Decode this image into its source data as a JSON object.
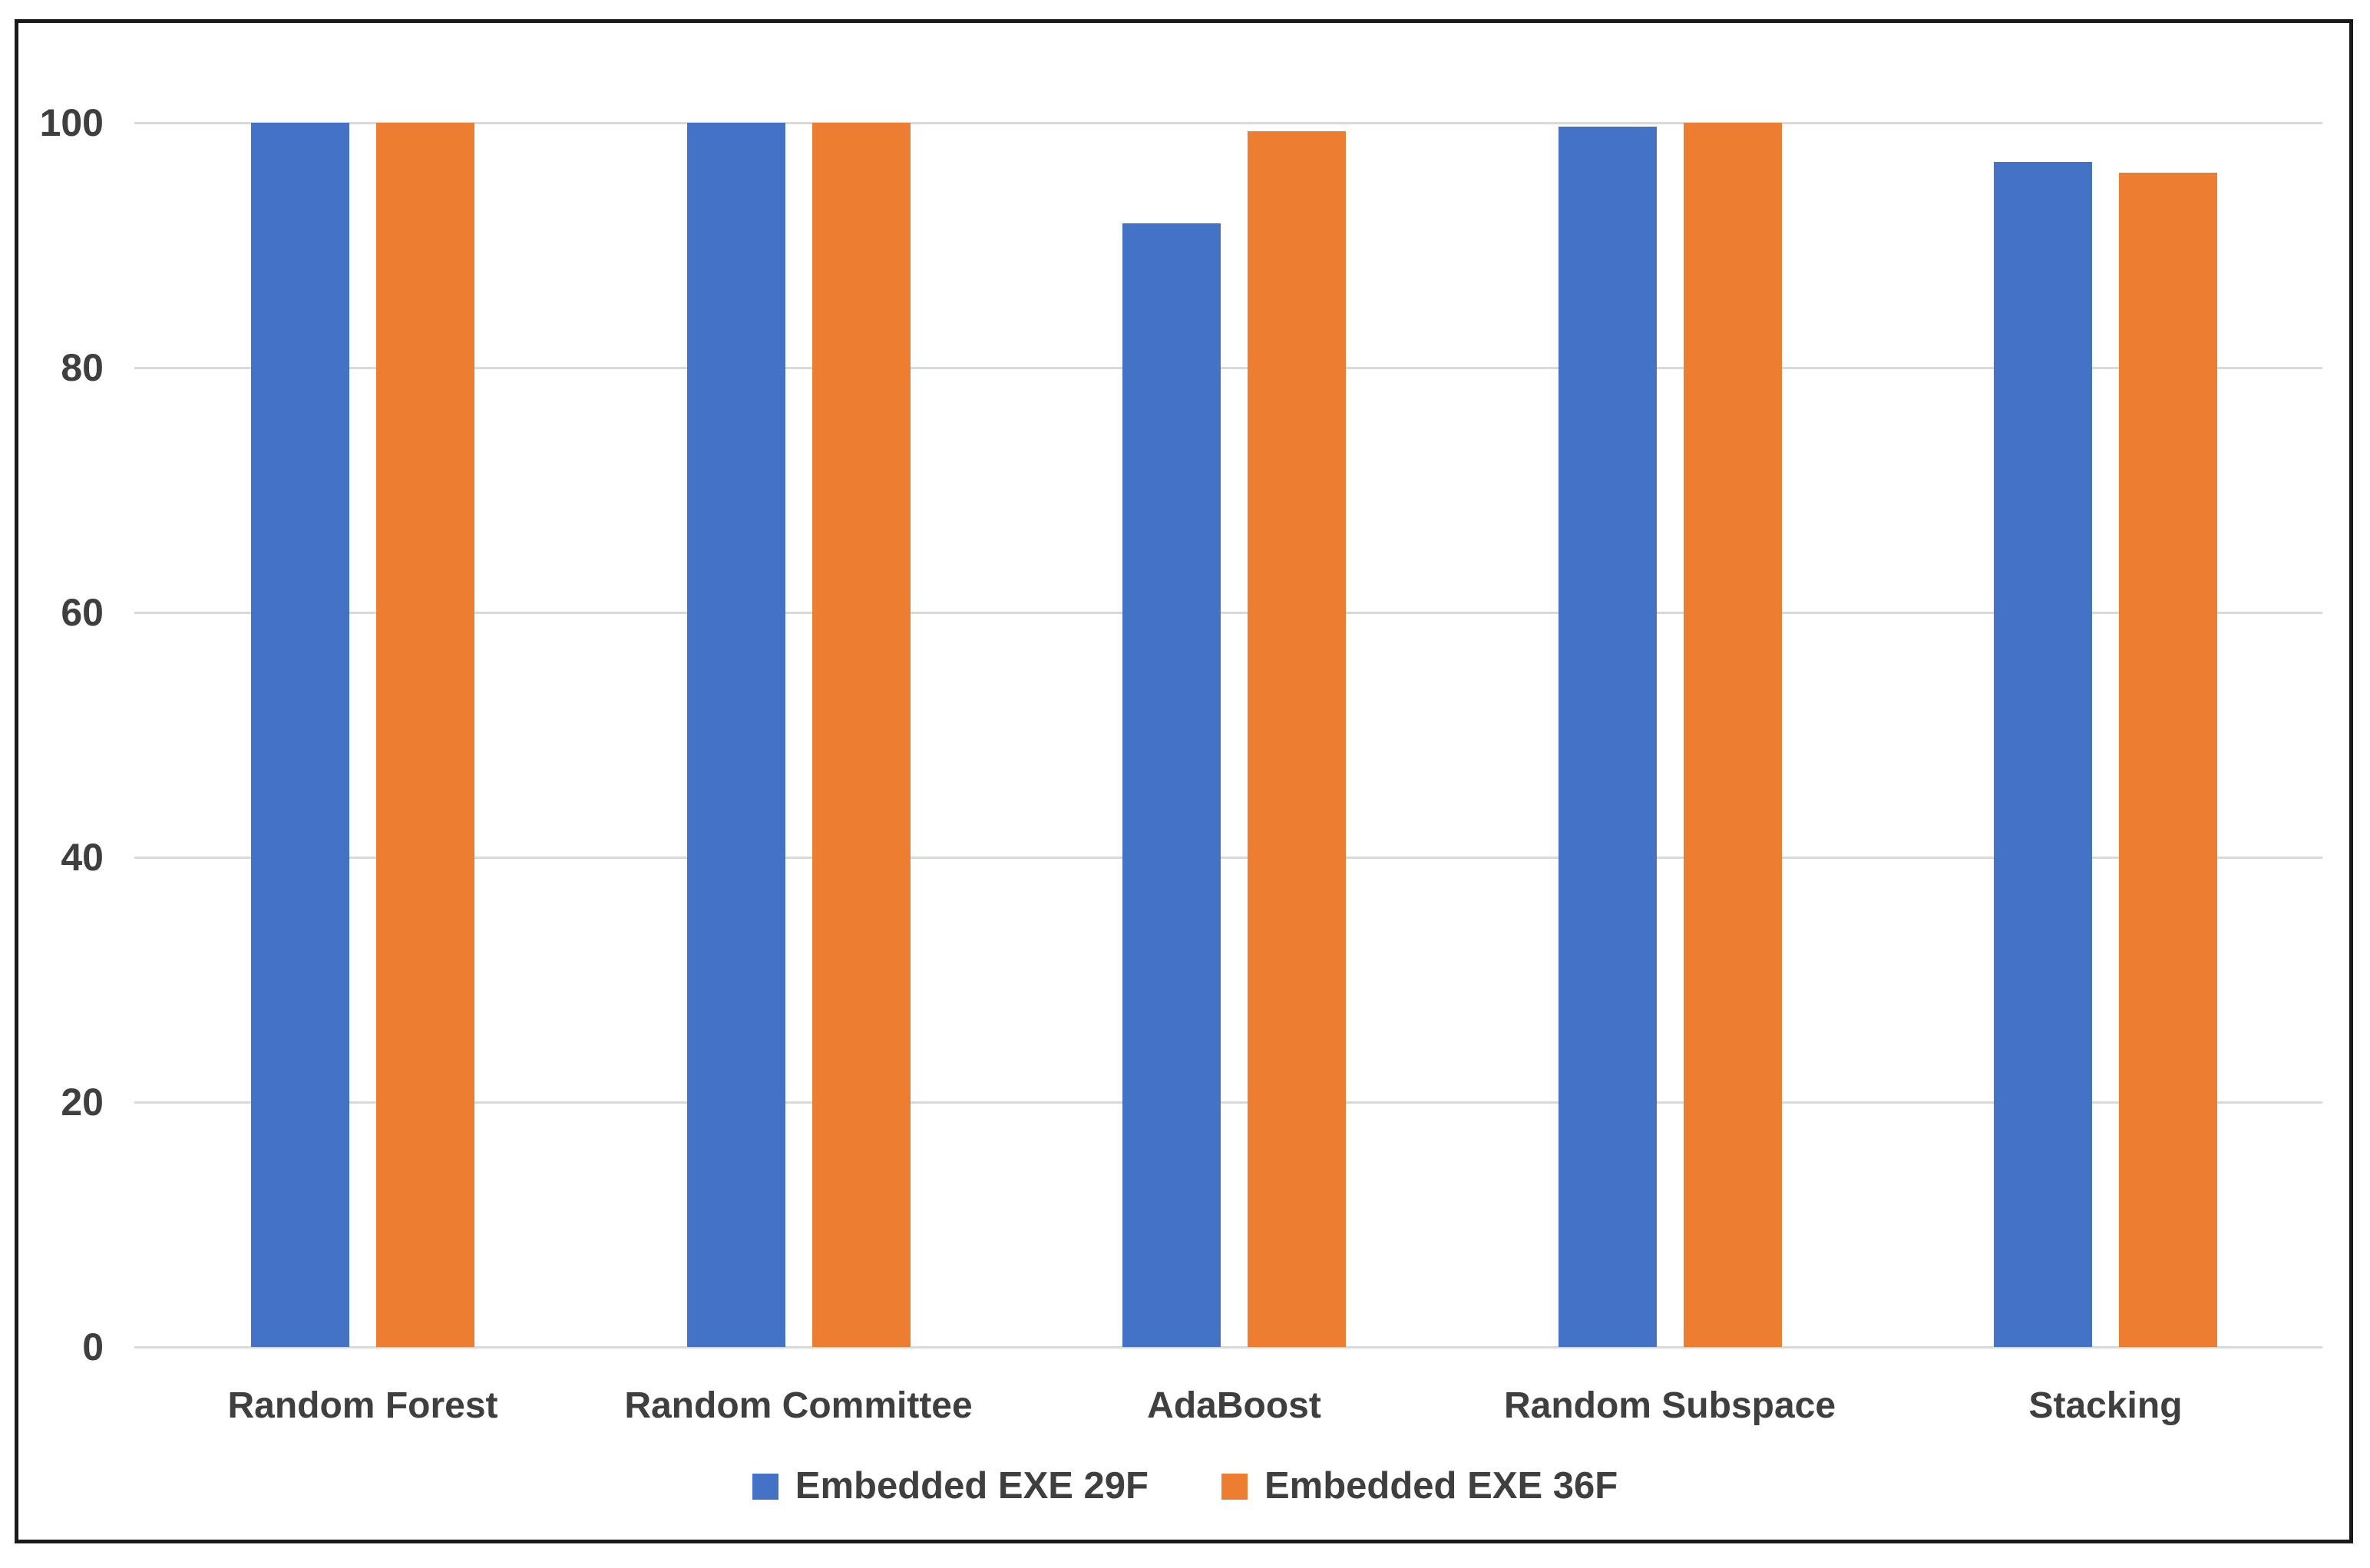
{
  "chart_data": {
    "type": "bar",
    "title": "",
    "xlabel": "",
    "ylabel": "",
    "categories": [
      "Random Forest",
      "Random Committee",
      "AdaBoost",
      "Random Subspace",
      "Stacking"
    ],
    "series": [
      {
        "name": "Embedded EXE 29F",
        "color": "#4472C4",
        "values": [
          100,
          100,
          91.8,
          99.7,
          96.8
        ]
      },
      {
        "name": "Embedded EXE 36F",
        "color": "#ED7D31",
        "values": [
          100,
          100,
          99.3,
          100,
          95.9
        ]
      }
    ],
    "ylim": [
      0,
      100
    ],
    "yticks": [
      0,
      20,
      40,
      60,
      80,
      100
    ],
    "grid": true,
    "legend_position": "bottom",
    "colors": {
      "gridline": "#D9D9D9",
      "axis_text": "#3F3F3F",
      "frame_border": "#1A1A1A",
      "background": "#FFFFFF"
    }
  }
}
